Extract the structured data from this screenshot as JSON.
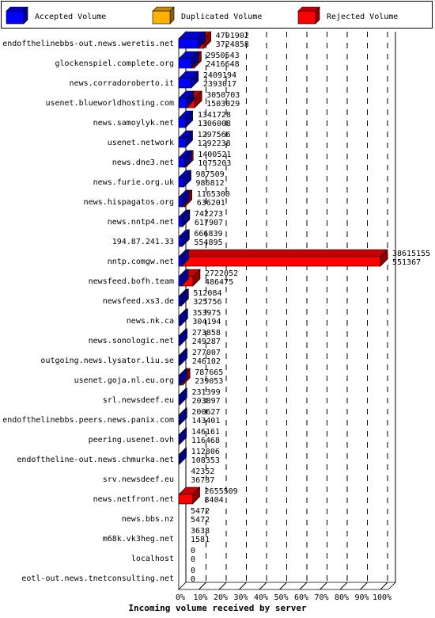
{
  "legend": [
    {
      "label": "Accepted Volume",
      "color": "#0000ff"
    },
    {
      "label": "Duplicated Volume",
      "color": "#ffb000"
    },
    {
      "label": "Rejected Volume",
      "color": "#ff0000"
    }
  ],
  "chart_data": {
    "type": "bar",
    "orientation": "horizontal",
    "stacked": true,
    "xlabel": "Incoming volume received by server",
    "xticks": [
      "0%",
      "10%",
      "20%",
      "30%",
      "40%",
      "50%",
      "60%",
      "70%",
      "80%",
      "90%",
      "100%"
    ],
    "categories": [
      "endofthelinebbs-out.news.weretis.net",
      "glockenspiel.complete.org",
      "news.corradoroberto.it",
      "usenet.blueworldhosting.com",
      "news.samoylyk.net",
      "usenet.network",
      "news.dne3.net",
      "news.furie.org.uk",
      "news.hispagatos.org",
      "news.nntp4.net",
      "194.87.241.33",
      "nntp.comgw.net",
      "newsfeed.bofh.team",
      "newsfeed.xs3.de",
      "news.nk.ca",
      "news.sonologic.net",
      "outgoing.news.lysator.liu.se",
      "usenet.goja.nl.eu.org",
      "srl.newsdeef.eu",
      "endofthelinebbs.peers.news.panix.com",
      "peering.usenet.ovh",
      "endoftheline-out.news.chmurka.net",
      "srv.newsdeef.eu",
      "news.netfront.net",
      "news.bbs.nz",
      "m68k.vk3heg.net",
      "localhost",
      "eotl-out.news.tnetconsulting.net"
    ],
    "total_values": [
      4791902,
      2950543,
      2409194,
      3050703,
      1341728,
      1297566,
      1400521,
      987509,
      1165300,
      742273,
      666839,
      38615155,
      2722052,
      512084,
      353975,
      273858,
      277007,
      787665,
      231399,
      200627,
      146161,
      112806,
      42352,
      2655509,
      5472,
      3638,
      0,
      0
    ],
    "accepted_values": [
      3724858,
      2416648,
      2393017,
      1503029,
      1306008,
      1292238,
      1075203,
      986812,
      636201,
      617907,
      554895,
      551367,
      486475,
      325756,
      304194,
      249287,
      246102,
      239053,
      203897,
      143401,
      116468,
      108353,
      36737,
      8404,
      5472,
      1581,
      0,
      0
    ],
    "series_colors": {
      "accepted": "#0000ff",
      "duplicated": "#ffb000",
      "rejected": "#ff0000"
    }
  }
}
